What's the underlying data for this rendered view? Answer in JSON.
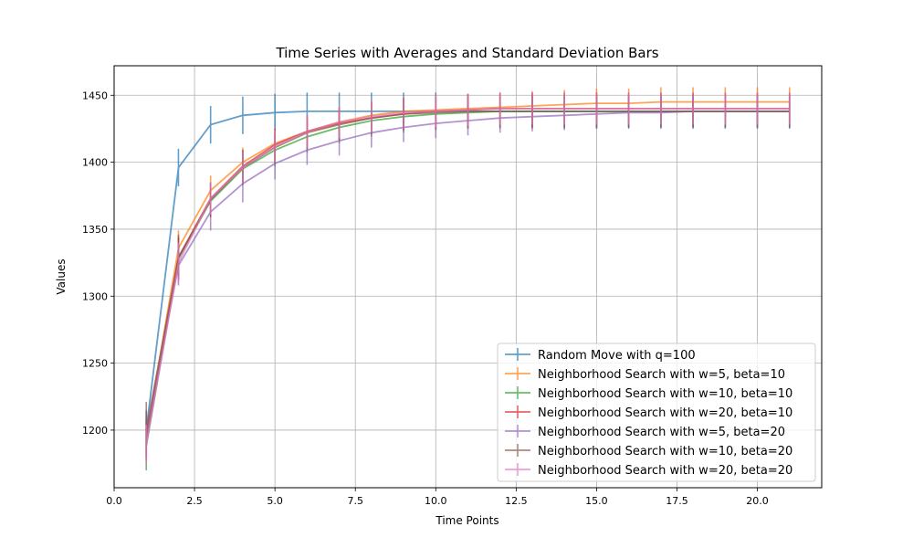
{
  "chart_data": {
    "type": "line",
    "title": "Time Series with Averages and Standard Deviation Bars",
    "xlabel": "Time Points",
    "ylabel": "Values",
    "xlim": [
      0.0,
      22.0
    ],
    "ylim": [
      1157,
      1472
    ],
    "xticks": [
      0.0,
      2.5,
      5.0,
      7.5,
      10.0,
      12.5,
      15.0,
      17.5,
      20.0
    ],
    "xtick_labels": [
      "0.0",
      "2.5",
      "5.0",
      "7.5",
      "10.0",
      "12.5",
      "15.0",
      "17.5",
      "20.0"
    ],
    "yticks": [
      1200,
      1250,
      1300,
      1350,
      1400,
      1450
    ],
    "ytick_labels": [
      "1200",
      "1250",
      "1300",
      "1350",
      "1400",
      "1450"
    ],
    "grid": true,
    "legend_position": "lower-right",
    "x": [
      1,
      2,
      3,
      4,
      5,
      6,
      7,
      8,
      9,
      10,
      11,
      12,
      13,
      14,
      15,
      16,
      17,
      18,
      19,
      20,
      21
    ],
    "series": [
      {
        "name": "Random Move with q=100",
        "color": "#1f77b4",
        "values": [
          1200,
          1396,
          1428,
          1435,
          1437,
          1438,
          1438,
          1438,
          1438,
          1438,
          1438,
          1438,
          1438,
          1438,
          1438,
          1438,
          1438,
          1438,
          1438,
          1438,
          1438
        ],
        "errors": [
          15,
          14,
          14,
          14,
          14,
          14,
          14,
          14,
          14,
          14,
          13,
          13,
          13,
          13,
          13,
          13,
          13,
          13,
          13,
          13,
          13
        ]
      },
      {
        "name": "Neighborhood Search with w=5, beta=10",
        "color": "#ff7f0e",
        "values": [
          1195,
          1336,
          1379,
          1400,
          1414,
          1423,
          1430,
          1435,
          1438,
          1439,
          1440,
          1441,
          1442,
          1443,
          1444,
          1444,
          1445,
          1445,
          1445,
          1445,
          1445
        ],
        "errors": [
          15,
          13,
          11,
          11,
          11,
          11,
          11,
          11,
          11,
          11,
          11,
          11,
          11,
          11,
          11,
          11,
          11,
          11,
          11,
          11,
          11
        ]
      },
      {
        "name": "Neighborhood Search with w=10, beta=10",
        "color": "#2ca02c",
        "values": [
          1188,
          1328,
          1371,
          1395,
          1409,
          1419,
          1426,
          1431,
          1434,
          1436,
          1437,
          1438,
          1438,
          1438,
          1438,
          1438,
          1438,
          1438,
          1438,
          1438,
          1438
        ],
        "errors": [
          18,
          15,
          12,
          12,
          12,
          12,
          12,
          12,
          12,
          12,
          12,
          12,
          12,
          12,
          12,
          12,
          12,
          12,
          12,
          12,
          12
        ]
      },
      {
        "name": "Neighborhood Search with w=20, beta=10",
        "color": "#d62728",
        "values": [
          1193,
          1329,
          1373,
          1397,
          1413,
          1423,
          1429,
          1433,
          1436,
          1438,
          1439,
          1440,
          1440,
          1440,
          1440,
          1440,
          1440,
          1440,
          1440,
          1440,
          1440
        ],
        "errors": [
          16,
          15,
          12,
          12,
          12,
          12,
          12,
          12,
          12,
          12,
          12,
          12,
          12,
          12,
          12,
          12,
          12,
          12,
          12,
          12,
          12
        ]
      },
      {
        "name": "Neighborhood Search with w=5, beta=20",
        "color": "#9467bd",
        "values": [
          1196,
          1323,
          1363,
          1384,
          1399,
          1409,
          1416,
          1422,
          1426,
          1429,
          1431,
          1433,
          1434,
          1435,
          1436,
          1437,
          1437,
          1438,
          1438,
          1438,
          1438
        ],
        "errors": [
          18,
          15,
          14,
          14,
          12,
          11,
          11,
          11,
          11,
          11,
          11,
          11,
          11,
          11,
          11,
          11,
          11,
          11,
          11,
          11,
          11
        ]
      },
      {
        "name": "Neighborhood Search with w=10, beta=20",
        "color": "#8c564b",
        "values": [
          1200,
          1329,
          1372,
          1396,
          1411,
          1422,
          1428,
          1433,
          1436,
          1437,
          1438,
          1438,
          1438,
          1438,
          1438,
          1438,
          1438,
          1438,
          1438,
          1438,
          1438
        ],
        "errors": [
          21,
          17,
          13,
          13,
          12,
          12,
          12,
          12,
          12,
          12,
          12,
          12,
          12,
          12,
          12,
          12,
          12,
          12,
          12,
          12,
          12
        ]
      },
      {
        "name": "Neighborhood Search with w=20, beta=20",
        "color": "#e377c2",
        "values": [
          1189,
          1325,
          1373,
          1396,
          1412,
          1423,
          1430,
          1434,
          1437,
          1438,
          1439,
          1440,
          1440,
          1440,
          1440,
          1440,
          1440,
          1440,
          1440,
          1440,
          1440
        ],
        "errors": [
          15,
          15,
          12,
          12,
          12,
          12,
          12,
          12,
          12,
          12,
          12,
          12,
          12,
          12,
          12,
          12,
          12,
          12,
          12,
          12,
          12
        ]
      }
    ]
  }
}
